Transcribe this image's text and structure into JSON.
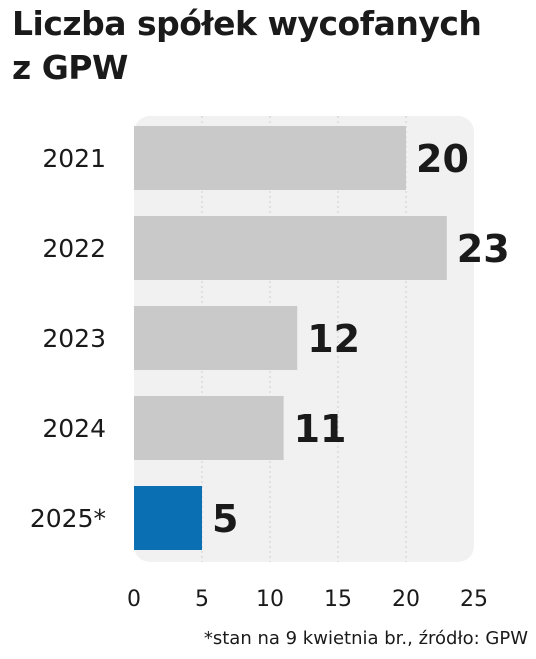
{
  "title_line1": "Liczba spółek wycofanych",
  "title_line2": "z GPW",
  "footnote": "*stan na 9 kwietnia br., źródło: GPW",
  "colors": {
    "bar": "#c9c9c9",
    "highlight": "#0b6fb4",
    "plot_bg": "#f1f1f1",
    "grid": "#cfcfcf",
    "text": "#1a1a1a"
  },
  "chart_data": {
    "type": "bar",
    "orientation": "horizontal",
    "categories": [
      "2021",
      "2022",
      "2023",
      "2024",
      "2025*"
    ],
    "values": [
      20,
      23,
      12,
      11,
      5
    ],
    "value_labels": [
      "20",
      "23",
      "12",
      "11",
      "5"
    ],
    "highlight": [
      "2025*"
    ],
    "xlim": [
      0,
      25
    ],
    "x_ticks": [
      "0",
      "5",
      "10",
      "15",
      "20",
      "25"
    ],
    "grid": true
  }
}
